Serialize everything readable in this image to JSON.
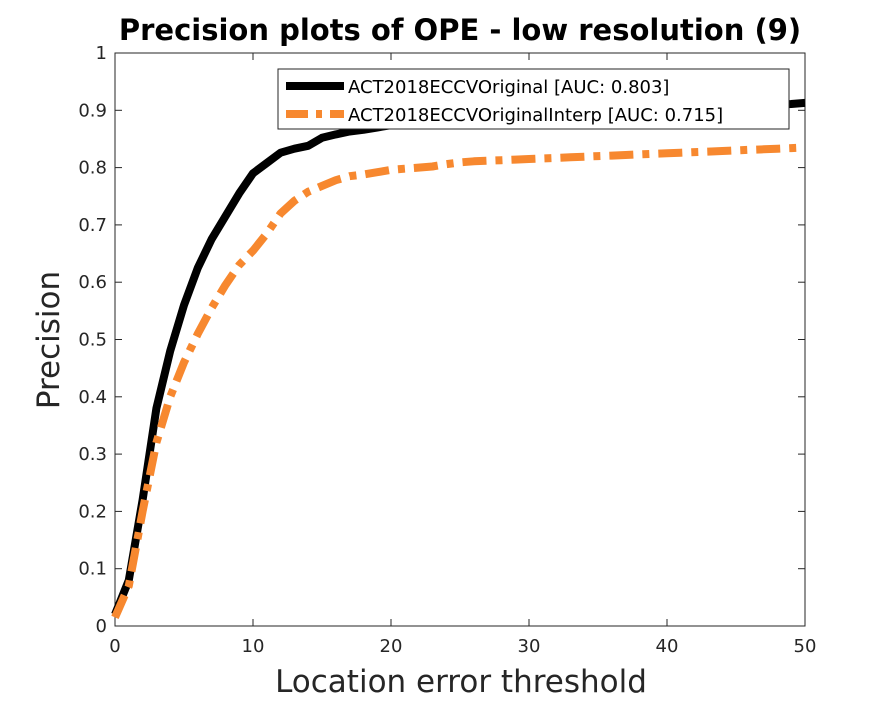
{
  "chart_data": {
    "type": "line",
    "title": "Precision plots of OPE - low resolution (9)",
    "xlabel": "Location error threshold",
    "ylabel": "Precision",
    "xlim": [
      0,
      50
    ],
    "ylim": [
      0,
      1
    ],
    "xticks": [
      "0",
      "10",
      "20",
      "30",
      "40",
      "50"
    ],
    "yticks": [
      "0",
      "0.1",
      "0.2",
      "0.3",
      "0.4",
      "0.5",
      "0.6",
      "0.7",
      "0.8",
      "0.9",
      "1"
    ],
    "grid": false,
    "legend_position": "top-right",
    "x": [
      0,
      1,
      2,
      3,
      4,
      5,
      6,
      7,
      8,
      9,
      10,
      11,
      12,
      13,
      14,
      15,
      16,
      17,
      18,
      19,
      20,
      21,
      22,
      23,
      24,
      25,
      26,
      27,
      28,
      29,
      30,
      31,
      32,
      33,
      34,
      35,
      36,
      37,
      38,
      39,
      40,
      41,
      42,
      43,
      44,
      45,
      46,
      47,
      48,
      49,
      50
    ],
    "series": [
      {
        "name": "ACT2018ECCVOriginal [AUC: 0.803]",
        "color": "#000000",
        "style": "solid",
        "values": [
          0.02,
          0.08,
          0.22,
          0.38,
          0.48,
          0.56,
          0.625,
          0.675,
          0.715,
          0.755,
          0.79,
          0.808,
          0.826,
          0.833,
          0.838,
          0.852,
          0.858,
          0.863,
          0.866,
          0.87,
          0.874,
          0.877,
          0.879,
          0.881,
          0.883,
          0.885,
          0.887,
          0.888,
          0.889,
          0.89,
          0.892,
          0.893,
          0.894,
          0.895,
          0.896,
          0.897,
          0.898,
          0.899,
          0.9,
          0.901,
          0.902,
          0.903,
          0.904,
          0.905,
          0.906,
          0.907,
          0.908,
          0.909,
          0.91,
          0.911,
          0.913
        ]
      },
      {
        "name": "ACT2018ECCVOriginalInterp [AUC: 0.715]",
        "color": "#F7882F",
        "style": "dashdot",
        "values": [
          0.015,
          0.07,
          0.2,
          0.32,
          0.4,
          0.46,
          0.51,
          0.555,
          0.595,
          0.63,
          0.655,
          0.685,
          0.72,
          0.742,
          0.758,
          0.768,
          0.778,
          0.785,
          0.788,
          0.792,
          0.796,
          0.798,
          0.8,
          0.802,
          0.806,
          0.809,
          0.811,
          0.812,
          0.813,
          0.814,
          0.815,
          0.816,
          0.817,
          0.818,
          0.819,
          0.82,
          0.821,
          0.822,
          0.823,
          0.824,
          0.825,
          0.826,
          0.827,
          0.828,
          0.829,
          0.83,
          0.831,
          0.832,
          0.833,
          0.834,
          0.835
        ]
      }
    ]
  }
}
